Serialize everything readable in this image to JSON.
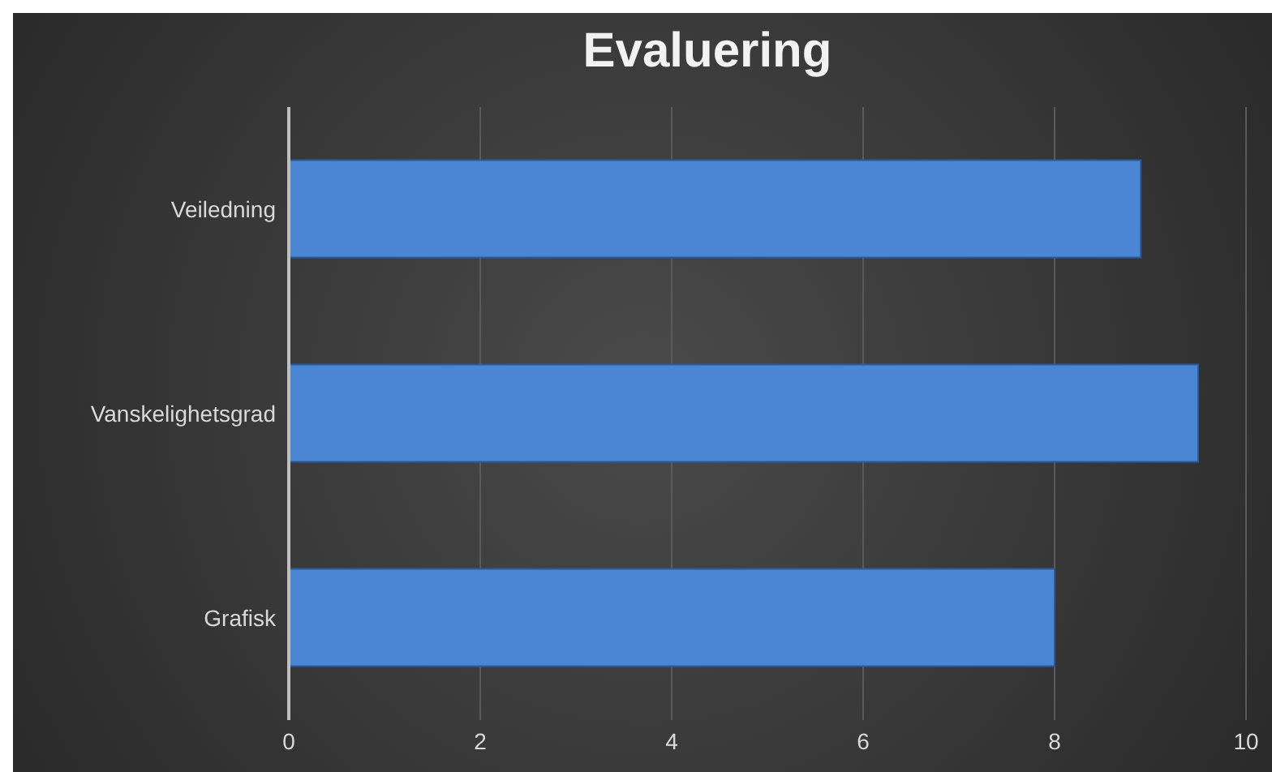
{
  "chart_data": {
    "type": "bar",
    "orientation": "horizontal",
    "title": "Evaluering",
    "categories": [
      "Veiledning",
      "Vanskelighetsgrad",
      "Grafisk"
    ],
    "values": [
      8.9,
      9.5,
      8.0
    ],
    "color": "#4a86d4",
    "xlim": [
      0,
      10
    ],
    "xticks": [
      0,
      2,
      4,
      6,
      8,
      10
    ],
    "grid": "x"
  }
}
